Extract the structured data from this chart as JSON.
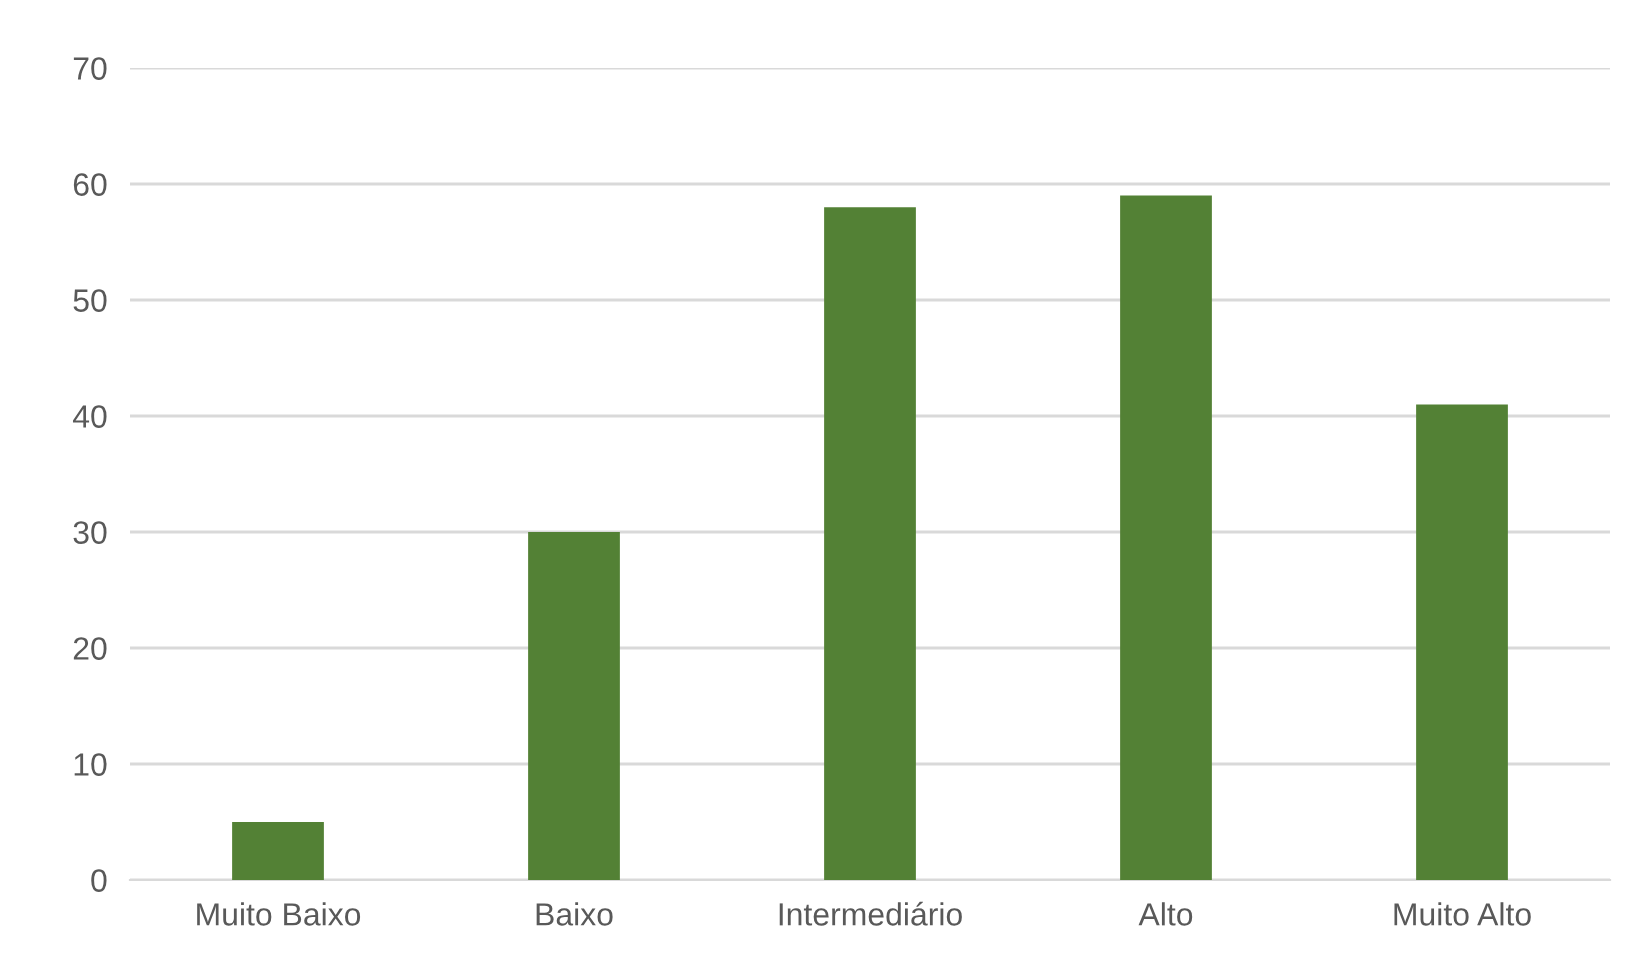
{
  "chart_data": {
    "type": "bar",
    "categories": [
      "Muito Baixo",
      "Baixo",
      "Intermediário",
      "Alto",
      "Muito Alto"
    ],
    "values": [
      5,
      30,
      58,
      59,
      41
    ],
    "color": "#538135",
    "ylim": [
      0,
      70
    ],
    "yticks": [
      0,
      10,
      20,
      30,
      40,
      50,
      60,
      70
    ],
    "grid": "y",
    "legend": false
  }
}
